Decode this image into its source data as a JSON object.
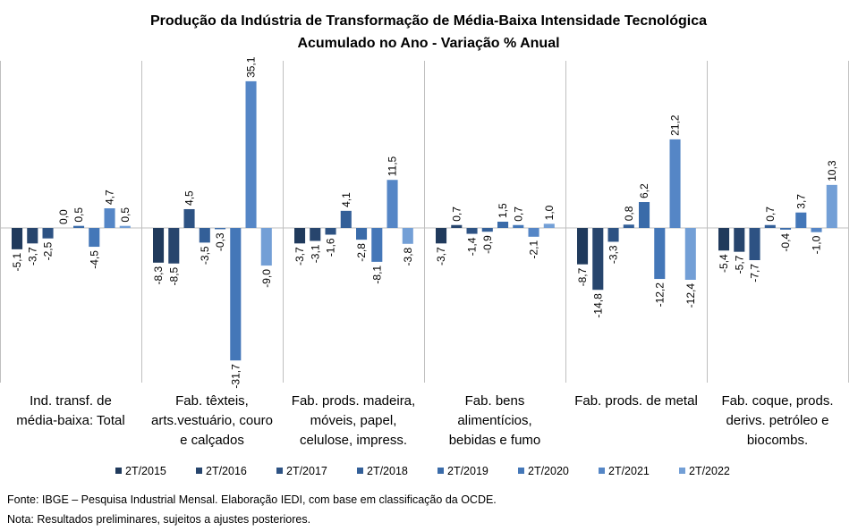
{
  "chart_data": {
    "type": "bar",
    "title": "Produção da Indústria de Transformação de Média-Baixa Intensidade Tecnológica",
    "subtitle": "Acumulado no Ano - Variação % Anual",
    "categories": [
      "Ind. transf. de\nmédia-baixa: Total",
      "Fab. têxteis,\narts.vestuário, couro\ne calçados",
      "Fab. prods. madeira,\nmóveis, papel,\ncelulose, impress.",
      "Fab. bens\nalimentícios,\nbebidas e fumo",
      "Fab. prods. de metal",
      "Fab. coque, prods.\nderivs. petróleo e\nbiocombs."
    ],
    "series": [
      {
        "name": "2T/2015",
        "color": "#203a5c",
        "values": [
          -5.1,
          -8.3,
          -3.7,
          -3.7,
          -8.7,
          -5.4
        ],
        "value_labels": [
          "-5,1",
          "-8,3",
          "-3,7",
          "-3,7",
          "-8,7",
          "-5,4"
        ]
      },
      {
        "name": "2T/2016",
        "color": "#27456d",
        "values": [
          -3.7,
          -8.5,
          -3.1,
          0.7,
          -14.8,
          -5.7
        ],
        "value_labels": [
          "-3,7",
          "-8,5",
          "-3,1",
          "0,7",
          "-14,8",
          "-5,7"
        ]
      },
      {
        "name": "2T/2017",
        "color": "#2d5283",
        "values": [
          -2.5,
          4.5,
          -1.6,
          -1.4,
          -3.3,
          -7.7
        ],
        "value_labels": [
          "-2,5",
          "4,5",
          "-1,6",
          "-1,4",
          "-3,3",
          "-7,7"
        ]
      },
      {
        "name": "2T/2018",
        "color": "#335f98",
        "values": [
          0.0,
          -3.5,
          4.1,
          -0.9,
          0.8,
          0.7
        ],
        "value_labels": [
          "0,0",
          "-3,5",
          "4,1",
          "-0,9",
          "0,8",
          "0,7"
        ]
      },
      {
        "name": "2T/2019",
        "color": "#3a6ba9",
        "values": [
          0.5,
          -0.3,
          -2.8,
          1.5,
          6.2,
          -0.4
        ],
        "value_labels": [
          "0,5",
          "-0,3",
          "-2,8",
          "1,5",
          "6,2",
          "-0,4"
        ]
      },
      {
        "name": "2T/2020",
        "color": "#4477b8",
        "values": [
          -4.5,
          -31.7,
          -8.1,
          0.7,
          -12.2,
          3.7
        ],
        "value_labels": [
          "-4,5",
          "-31,7",
          "-8,1",
          "0,7",
          "-12,2",
          "3,7"
        ]
      },
      {
        "name": "2T/2021",
        "color": "#5586c6",
        "values": [
          4.7,
          35.1,
          11.5,
          -2.1,
          21.2,
          -1.0
        ],
        "value_labels": [
          "4,7",
          "35,1",
          "11,5",
          "-2,1",
          "21,2",
          "-1,0"
        ]
      },
      {
        "name": "2T/2022",
        "color": "#739fd6",
        "values": [
          0.5,
          -9.0,
          -3.8,
          1.0,
          -12.4,
          10.3
        ],
        "value_labels": [
          "0,5",
          "-9,0",
          "-3,8",
          "1,0",
          "-12,4",
          "10,3"
        ]
      }
    ],
    "ylim": [
      -37,
      40
    ],
    "legend": "bottom",
    "notes": [
      "Fonte: IBGE – Pesquisa Industrial Mensal. Elaboração IEDI, com base em classificação da OCDE.",
      "Nota: Resultados preliminares, sujeitos a ajustes posteriores."
    ]
  }
}
